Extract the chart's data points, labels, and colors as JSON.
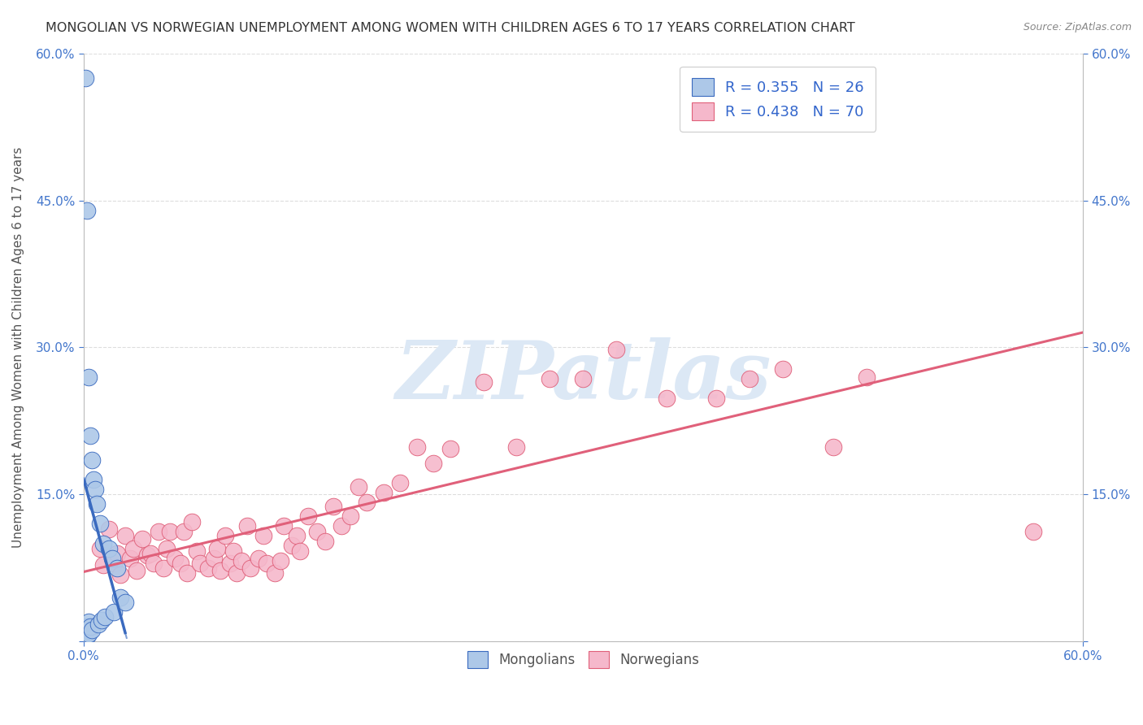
{
  "title": "MONGOLIAN VS NORWEGIAN UNEMPLOYMENT AMONG WOMEN WITH CHILDREN AGES 6 TO 17 YEARS CORRELATION CHART",
  "source": "Source: ZipAtlas.com",
  "ylabel": "Unemployment Among Women with Children Ages 6 to 17 years",
  "xlim": [
    0.0,
    0.6
  ],
  "ylim": [
    0.0,
    0.6
  ],
  "mongolian_color": "#adc8e8",
  "norwegian_color": "#f5b8cb",
  "mongolian_line_color": "#3a6abf",
  "norwegian_line_color": "#e0607a",
  "mongolian_x": [
    0.001,
    0.001,
    0.002,
    0.002,
    0.002,
    0.003,
    0.003,
    0.003,
    0.004,
    0.004,
    0.005,
    0.005,
    0.006,
    0.007,
    0.008,
    0.009,
    0.01,
    0.011,
    0.012,
    0.013,
    0.015,
    0.017,
    0.018,
    0.02,
    0.022,
    0.025
  ],
  "mongolian_y": [
    0.575,
    0.01,
    0.44,
    0.015,
    0.005,
    0.27,
    0.02,
    0.008,
    0.21,
    0.015,
    0.185,
    0.012,
    0.165,
    0.155,
    0.14,
    0.018,
    0.12,
    0.022,
    0.1,
    0.025,
    0.095,
    0.085,
    0.03,
    0.075,
    0.045,
    0.04
  ],
  "norwegian_x": [
    0.01,
    0.012,
    0.015,
    0.018,
    0.02,
    0.022,
    0.025,
    0.028,
    0.03,
    0.032,
    0.035,
    0.038,
    0.04,
    0.042,
    0.045,
    0.048,
    0.05,
    0.052,
    0.055,
    0.058,
    0.06,
    0.062,
    0.065,
    0.068,
    0.07,
    0.075,
    0.078,
    0.08,
    0.082,
    0.085,
    0.088,
    0.09,
    0.092,
    0.095,
    0.098,
    0.1,
    0.105,
    0.108,
    0.11,
    0.115,
    0.118,
    0.12,
    0.125,
    0.128,
    0.13,
    0.135,
    0.14,
    0.145,
    0.15,
    0.155,
    0.16,
    0.165,
    0.17,
    0.18,
    0.19,
    0.2,
    0.21,
    0.22,
    0.24,
    0.26,
    0.28,
    0.3,
    0.32,
    0.35,
    0.38,
    0.4,
    0.42,
    0.45,
    0.47,
    0.57
  ],
  "norwegian_y": [
    0.095,
    0.078,
    0.115,
    0.08,
    0.09,
    0.068,
    0.108,
    0.085,
    0.095,
    0.072,
    0.105,
    0.088,
    0.09,
    0.08,
    0.112,
    0.075,
    0.095,
    0.112,
    0.085,
    0.08,
    0.112,
    0.07,
    0.122,
    0.092,
    0.08,
    0.075,
    0.085,
    0.095,
    0.072,
    0.108,
    0.08,
    0.092,
    0.07,
    0.082,
    0.118,
    0.075,
    0.085,
    0.108,
    0.08,
    0.07,
    0.082,
    0.118,
    0.098,
    0.108,
    0.092,
    0.128,
    0.112,
    0.102,
    0.138,
    0.118,
    0.128,
    0.158,
    0.142,
    0.152,
    0.162,
    0.198,
    0.182,
    0.197,
    0.265,
    0.198,
    0.268,
    0.268,
    0.298,
    0.248,
    0.248,
    0.268,
    0.278,
    0.198,
    0.27,
    0.112
  ],
  "background_color": "#ffffff",
  "grid_color": "#dddddd",
  "watermark_text": "ZIPatlas",
  "watermark_color": "#dce8f5"
}
